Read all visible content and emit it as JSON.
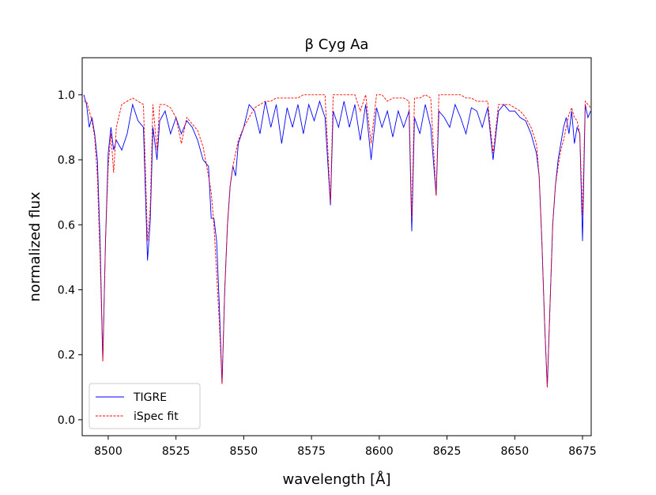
{
  "chart_data": {
    "type": "line",
    "title": "β Cyg Aa",
    "xlabel": "wavelength [Å]",
    "ylabel": "normalized flux",
    "xlim": [
      8490.4,
      8678.2
    ],
    "ylim": [
      -0.049,
      1.114
    ],
    "xticks": [
      8500,
      8525,
      8550,
      8575,
      8600,
      8625,
      8650,
      8675
    ],
    "yticks": [
      {
        "value": 0,
        "label": "0.0"
      },
      0.2,
      0.4,
      0.6,
      0.8,
      {
        "value": 1,
        "label": "1.0"
      }
    ],
    "legend": "lower left",
    "x": [
      8491,
      8492,
      8493,
      8494,
      8495,
      8496,
      8497,
      8498,
      8499,
      8500,
      8501,
      8502,
      8503,
      8505,
      8507,
      8509,
      8511,
      8513,
      8514.5,
      8515.5,
      8516.5,
      8518,
      8519,
      8521,
      8523,
      8525,
      8527,
      8529,
      8531,
      8533,
      8535,
      8537,
      8538,
      8539,
      8540,
      8541,
      8542,
      8543,
      8544,
      8545,
      8546,
      8547,
      8548,
      8550,
      8552,
      8554,
      8556,
      8558,
      8560,
      8562,
      8564,
      8566,
      8568,
      8570,
      8572,
      8574,
      8576,
      8578,
      8580,
      8582,
      8583,
      8585,
      8587,
      8589,
      8591,
      8593,
      8595,
      8597,
      8599,
      8601,
      8603,
      8605,
      8607,
      8609,
      8611,
      8612,
      8613,
      8615,
      8617,
      8619,
      8621,
      8622,
      8624,
      8626,
      8628,
      8630,
      8632,
      8634,
      8636,
      8638,
      8640,
      8642,
      8644,
      8646,
      8648,
      8650,
      8652,
      8654,
      8656,
      8658,
      8659,
      8660,
      8661,
      8662,
      8663,
      8664,
      8665,
      8666,
      8667,
      8668,
      8669,
      8670,
      8671,
      8672,
      8673,
      8674,
      8675,
      8676,
      8677,
      8678
    ],
    "series": [
      {
        "name": "TIGRE",
        "color": "#0000ff",
        "dash": false,
        "values": [
          1.0,
          0.97,
          0.9,
          0.93,
          0.88,
          0.8,
          0.55,
          0.18,
          0.55,
          0.82,
          0.9,
          0.83,
          0.86,
          0.83,
          0.88,
          0.97,
          0.92,
          0.9,
          0.49,
          0.61,
          0.9,
          0.8,
          0.92,
          0.95,
          0.88,
          0.93,
          0.88,
          0.92,
          0.9,
          0.86,
          0.8,
          0.78,
          0.62,
          0.62,
          0.55,
          0.35,
          0.11,
          0.4,
          0.6,
          0.72,
          0.78,
          0.75,
          0.85,
          0.9,
          0.97,
          0.95,
          0.88,
          0.98,
          0.9,
          0.97,
          0.85,
          0.96,
          0.9,
          0.97,
          0.88,
          0.97,
          0.92,
          0.98,
          0.93,
          0.66,
          0.95,
          0.9,
          0.98,
          0.9,
          0.97,
          0.86,
          0.97,
          0.8,
          0.96,
          0.9,
          0.95,
          0.87,
          0.95,
          0.9,
          0.95,
          0.58,
          0.93,
          0.88,
          0.97,
          0.9,
          0.69,
          0.95,
          0.93,
          0.9,
          0.97,
          0.93,
          0.88,
          0.96,
          0.95,
          0.9,
          0.96,
          0.8,
          0.95,
          0.97,
          0.95,
          0.95,
          0.93,
          0.92,
          0.88,
          0.82,
          0.75,
          0.55,
          0.3,
          0.1,
          0.35,
          0.6,
          0.72,
          0.8,
          0.85,
          0.9,
          0.93,
          0.88,
          0.95,
          0.85,
          0.9,
          0.88,
          0.55,
          0.97,
          0.93,
          0.95
        ]
      },
      {
        "name": "iSpec fit",
        "color": "#ff0000",
        "dash": true,
        "values": [
          0.98,
          0.98,
          0.95,
          0.92,
          0.87,
          0.75,
          0.5,
          0.18,
          0.55,
          0.78,
          0.88,
          0.76,
          0.9,
          0.97,
          0.98,
          0.99,
          0.98,
          0.97,
          0.55,
          0.65,
          0.97,
          0.83,
          0.97,
          0.97,
          0.96,
          0.93,
          0.85,
          0.93,
          0.91,
          0.89,
          0.84,
          0.75,
          0.7,
          0.6,
          0.45,
          0.3,
          0.11,
          0.4,
          0.6,
          0.72,
          0.78,
          0.82,
          0.86,
          0.9,
          0.93,
          0.96,
          0.97,
          0.98,
          0.98,
          0.99,
          0.99,
          0.99,
          0.99,
          0.99,
          1.0,
          1.0,
          1.0,
          1.0,
          1.0,
          0.67,
          1.0,
          1.0,
          1.0,
          1.0,
          1.0,
          0.95,
          1.0,
          0.85,
          1.0,
          1.0,
          0.98,
          0.99,
          0.99,
          0.99,
          0.98,
          0.62,
          0.99,
          0.99,
          1.0,
          0.99,
          0.69,
          1.0,
          1.0,
          1.0,
          1.0,
          1.0,
          0.99,
          0.99,
          0.98,
          0.98,
          0.98,
          0.82,
          0.97,
          0.97,
          0.97,
          0.96,
          0.95,
          0.93,
          0.9,
          0.85,
          0.75,
          0.55,
          0.3,
          0.1,
          0.35,
          0.6,
          0.72,
          0.78,
          0.83,
          0.86,
          0.9,
          0.94,
          0.96,
          0.93,
          0.92,
          0.88,
          0.63,
          0.98,
          0.97,
          0.96
        ]
      }
    ]
  }
}
